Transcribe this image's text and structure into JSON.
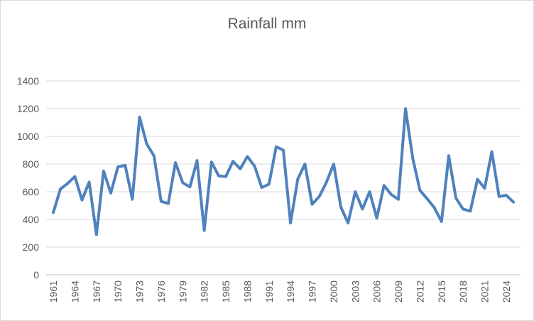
{
  "chart_data": {
    "type": "line",
    "title": "Rainfall mm",
    "xlabel": "",
    "ylabel": "",
    "ylim": [
      0,
      1400
    ],
    "yticks": [
      0,
      200,
      400,
      600,
      800,
      1000,
      1200,
      1400
    ],
    "grid": true,
    "legend": "none",
    "color": "#4f81bd",
    "x": [
      1961,
      1962,
      1963,
      1964,
      1965,
      1966,
      1967,
      1968,
      1969,
      1970,
      1971,
      1972,
      1973,
      1974,
      1975,
      1976,
      1977,
      1978,
      1979,
      1980,
      1981,
      1982,
      1983,
      1984,
      1985,
      1986,
      1987,
      1988,
      1989,
      1990,
      1991,
      1992,
      1993,
      1994,
      1995,
      1996,
      1997,
      1998,
      1999,
      2000,
      2001,
      2002,
      2003,
      2004,
      2005,
      2006,
      2007,
      2008,
      2009,
      2010,
      2011,
      2012,
      2013,
      2014,
      2015,
      2016,
      2017,
      2018,
      2019,
      2020,
      2021,
      2022,
      2023,
      2024,
      2025
    ],
    "xtick_labels": [
      "1961",
      "1964",
      "1967",
      "1970",
      "1973",
      "1976",
      "1979",
      "1982",
      "1985",
      "1988",
      "1991",
      "1994",
      "1997",
      "2000",
      "2003",
      "2006",
      "2009",
      "2012",
      "2015",
      "2018",
      "2021",
      "2024"
    ],
    "series": [
      {
        "name": "Rainfall mm",
        "values": [
          450,
          620,
          660,
          710,
          540,
          670,
          290,
          750,
          590,
          780,
          790,
          545,
          1140,
          945,
          860,
          530,
          515,
          810,
          665,
          635,
          825,
          320,
          815,
          715,
          710,
          820,
          765,
          855,
          785,
          630,
          655,
          925,
          900,
          375,
          690,
          800,
          510,
          565,
          670,
          800,
          490,
          375,
          600,
          475,
          600,
          410,
          645,
          580,
          545,
          1200,
          840,
          610,
          550,
          485,
          385,
          860,
          555,
          475,
          460,
          690,
          625,
          890,
          565,
          575,
          525
        ]
      }
    ]
  }
}
